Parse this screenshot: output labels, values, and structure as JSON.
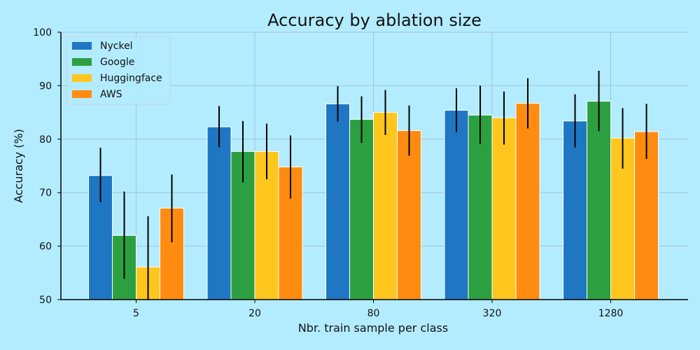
{
  "chart_data": {
    "type": "bar",
    "title": "Accuracy by ablation size",
    "xlabel": "Nbr. train sample per class",
    "ylabel": "Accuracy (%)",
    "categories": [
      "5",
      "20",
      "80",
      "320",
      "1280"
    ],
    "ylim": [
      50,
      100
    ],
    "yticks": [
      50,
      60,
      70,
      80,
      90,
      100
    ],
    "grid": true,
    "legend_position": "top-left",
    "colors": {
      "background": "#b3ecff",
      "grid": "#a0c4d4",
      "axis": "#000000",
      "error_bar": "#000000"
    },
    "series": [
      {
        "name": "Nyckel",
        "color": "#1f77c4",
        "values": [
          73.2,
          82.3,
          86.6,
          85.4,
          83.4
        ],
        "error_low": [
          68.2,
          78.5,
          83.3,
          81.3,
          78.4
        ],
        "error_high": [
          78.4,
          86.2,
          89.9,
          89.5,
          88.4
        ]
      },
      {
        "name": "Google",
        "color": "#2ca040",
        "values": [
          62.0,
          77.7,
          83.7,
          84.5,
          87.1
        ],
        "error_low": [
          53.9,
          71.9,
          79.3,
          79.1,
          81.5
        ],
        "error_high": [
          70.2,
          83.4,
          88.0,
          90.0,
          92.8
        ]
      },
      {
        "name": "Huggingface",
        "color": "#ffc61e",
        "values": [
          56.1,
          77.7,
          85.0,
          84.0,
          80.2
        ],
        "error_low": [
          50.0,
          72.5,
          80.8,
          79.0,
          74.5
        ],
        "error_high": [
          65.6,
          82.9,
          89.2,
          88.9,
          85.8
        ]
      },
      {
        "name": "AWS",
        "color": "#ff8c10",
        "values": [
          67.1,
          74.8,
          81.6,
          86.7,
          81.4
        ],
        "error_low": [
          60.7,
          68.9,
          76.9,
          82.0,
          76.3
        ],
        "error_high": [
          73.4,
          80.7,
          86.3,
          91.4,
          86.6
        ]
      }
    ]
  }
}
